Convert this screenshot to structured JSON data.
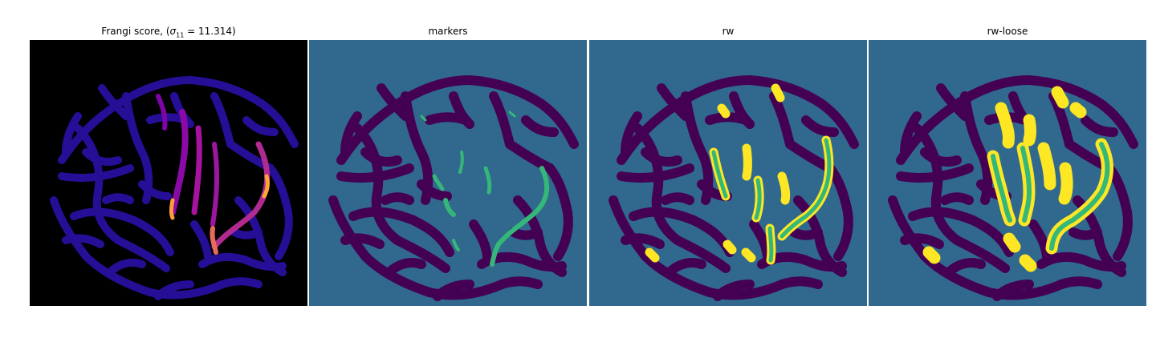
{
  "panels": [
    {
      "title_main": "Frangi score, (",
      "title_sigma": "σ",
      "title_sub": "11",
      "title_rest": " = 11.314)",
      "colormap": "plasma",
      "background": "#000000"
    },
    {
      "title": "markers",
      "colormap": "viridis",
      "background": "#31688e"
    },
    {
      "title": "rw",
      "colormap": "viridis",
      "background": "#31688e"
    },
    {
      "title": "rw-loose",
      "colormap": "viridis",
      "background": "#31688e"
    }
  ],
  "colors": {
    "vessel_dark": "#440154",
    "field_blue": "#31688e",
    "marker_green": "#35b779",
    "seg_yellow": "#fde725",
    "plasma_low": "#0d0887",
    "plasma_mid": "#7e03a8",
    "plasma_high": "#f0f921"
  }
}
